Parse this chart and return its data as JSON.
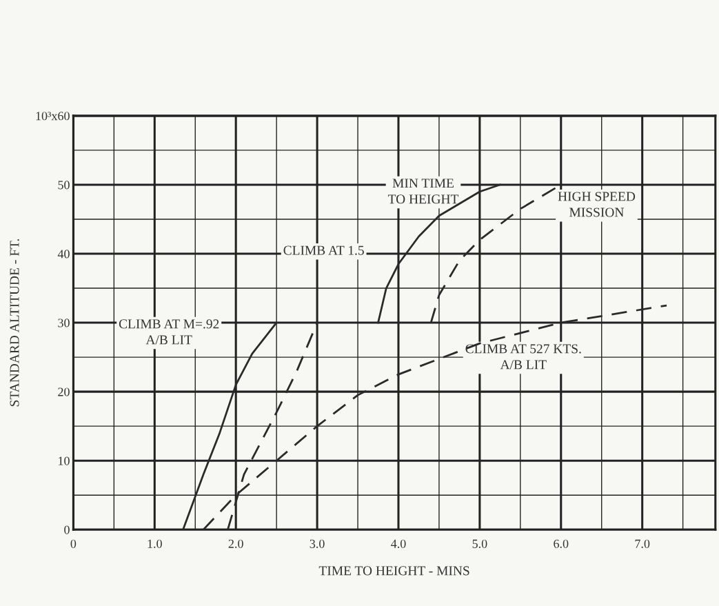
{
  "chart_data": {
    "type": "line",
    "xlabel": "TIME TO HEIGHT - MINS",
    "ylabel": "STANDARD ALTITUDE - FT.",
    "xlim": [
      0,
      7.9
    ],
    "ylim": [
      0,
      60
    ],
    "xticks": [
      0,
      {
        "value": 0.5,
        "label": null
      },
      {
        "value": 1,
        "label": "1.0"
      },
      {
        "value": 1.5,
        "label": null
      },
      {
        "value": 2,
        "label": "2.0"
      },
      {
        "value": 2.5,
        "label": null
      },
      {
        "value": 3,
        "label": "3.0"
      },
      {
        "value": 3.5,
        "label": null
      },
      {
        "value": 4,
        "label": "4.0"
      },
      {
        "value": 4.5,
        "label": null
      },
      {
        "value": 5,
        "label": "5.0"
      },
      {
        "value": 5.5,
        "label": null
      },
      {
        "value": 6,
        "label": "6.0"
      },
      {
        "value": 6.5,
        "label": null
      },
      {
        "value": 7,
        "label": "7.0"
      },
      {
        "value": 7.5,
        "label": null
      }
    ],
    "yticks": [
      0,
      {
        "value": 5,
        "label": null
      },
      10,
      {
        "value": 15,
        "label": null
      },
      20,
      {
        "value": 25,
        "label": null
      },
      30,
      {
        "value": 35,
        "label": null
      },
      40,
      {
        "value": 45,
        "label": null
      },
      50,
      {
        "value": 55,
        "label": null
      },
      {
        "value": 60,
        "label": "10³x60"
      }
    ],
    "grid": true,
    "marker": "none",
    "series": [
      {
        "color": "#2a2a2a",
        "line_style": "solid",
        "x": [
          1.35,
          1.6,
          1.8,
          2.0,
          2.2,
          2.5
        ],
        "values": [
          0,
          8,
          14,
          21,
          25.5,
          30
        ]
      },
      {
        "color": "#2a2a2a",
        "line_style": "dashed",
        "x": [
          1.9,
          2.0,
          2.1,
          2.3,
          2.5,
          2.75,
          3.0
        ],
        "values": [
          0,
          4,
          8,
          12.5,
          17,
          23,
          30
        ]
      },
      {
        "color": "#2a2a2a",
        "line_style": "dashed",
        "x": [
          1.6,
          2.0,
          2.5,
          3.0,
          3.5,
          4.0,
          5.0,
          6.0,
          7.3
        ],
        "values": [
          0,
          5,
          10,
          15,
          19.5,
          22.5,
          27,
          30,
          32.5
        ]
      },
      {
        "color": "#2a2a2a",
        "line_style": "solid",
        "x": [
          3.75,
          3.85,
          4.0,
          4.25,
          4.5,
          5.0,
          5.25
        ],
        "values": [
          30,
          35,
          38.5,
          42.5,
          45.5,
          49,
          50
        ]
      },
      {
        "color": "#2a2a2a",
        "line_style": "dashed",
        "x": [
          4.4,
          4.5,
          4.75,
          5.0,
          5.5,
          6.0
        ],
        "values": [
          30,
          34,
          39,
          42,
          46.5,
          50
        ]
      }
    ],
    "annotations": [
      "MIN TIME\nTO HEIGHT",
      "HIGH SPEED\nMISSION",
      "CLIMB AT 1.5",
      "CLIMB AT M=.92\nA/B LIT",
      "CLIMB AT 527 KTS.\nA/B LIT"
    ]
  }
}
